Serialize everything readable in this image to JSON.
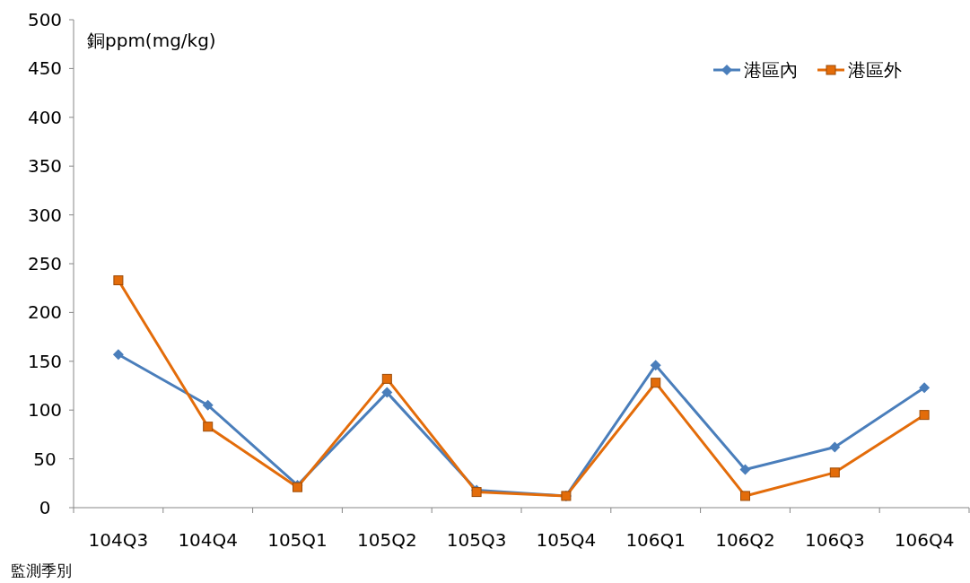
{
  "chart_data": {
    "type": "line",
    "ylabel": "銅ppm(mg/kg)",
    "xlabel": "監測季別",
    "categories": [
      "104Q3",
      "104Q4",
      "105Q1",
      "105Q2",
      "105Q3",
      "105Q4",
      "106Q1",
      "106Q2",
      "106Q3",
      "106Q4"
    ],
    "series": [
      {
        "name": "港區內",
        "color": "#4a7ebb",
        "marker": "diamond",
        "values": [
          157,
          105,
          23,
          118,
          18,
          12,
          146,
          39,
          62,
          123
        ]
      },
      {
        "name": "港區外",
        "color": "#e36c0a",
        "marker": "square",
        "values": [
          233,
          83,
          21,
          132,
          16,
          12,
          128,
          12,
          36,
          95
        ]
      }
    ],
    "ylim": [
      0,
      500
    ],
    "yticks": [
      0,
      50,
      100,
      150,
      200,
      250,
      300,
      350,
      400,
      450,
      500
    ],
    "grid": false,
    "legend": "top right",
    "line_style": "solid"
  }
}
